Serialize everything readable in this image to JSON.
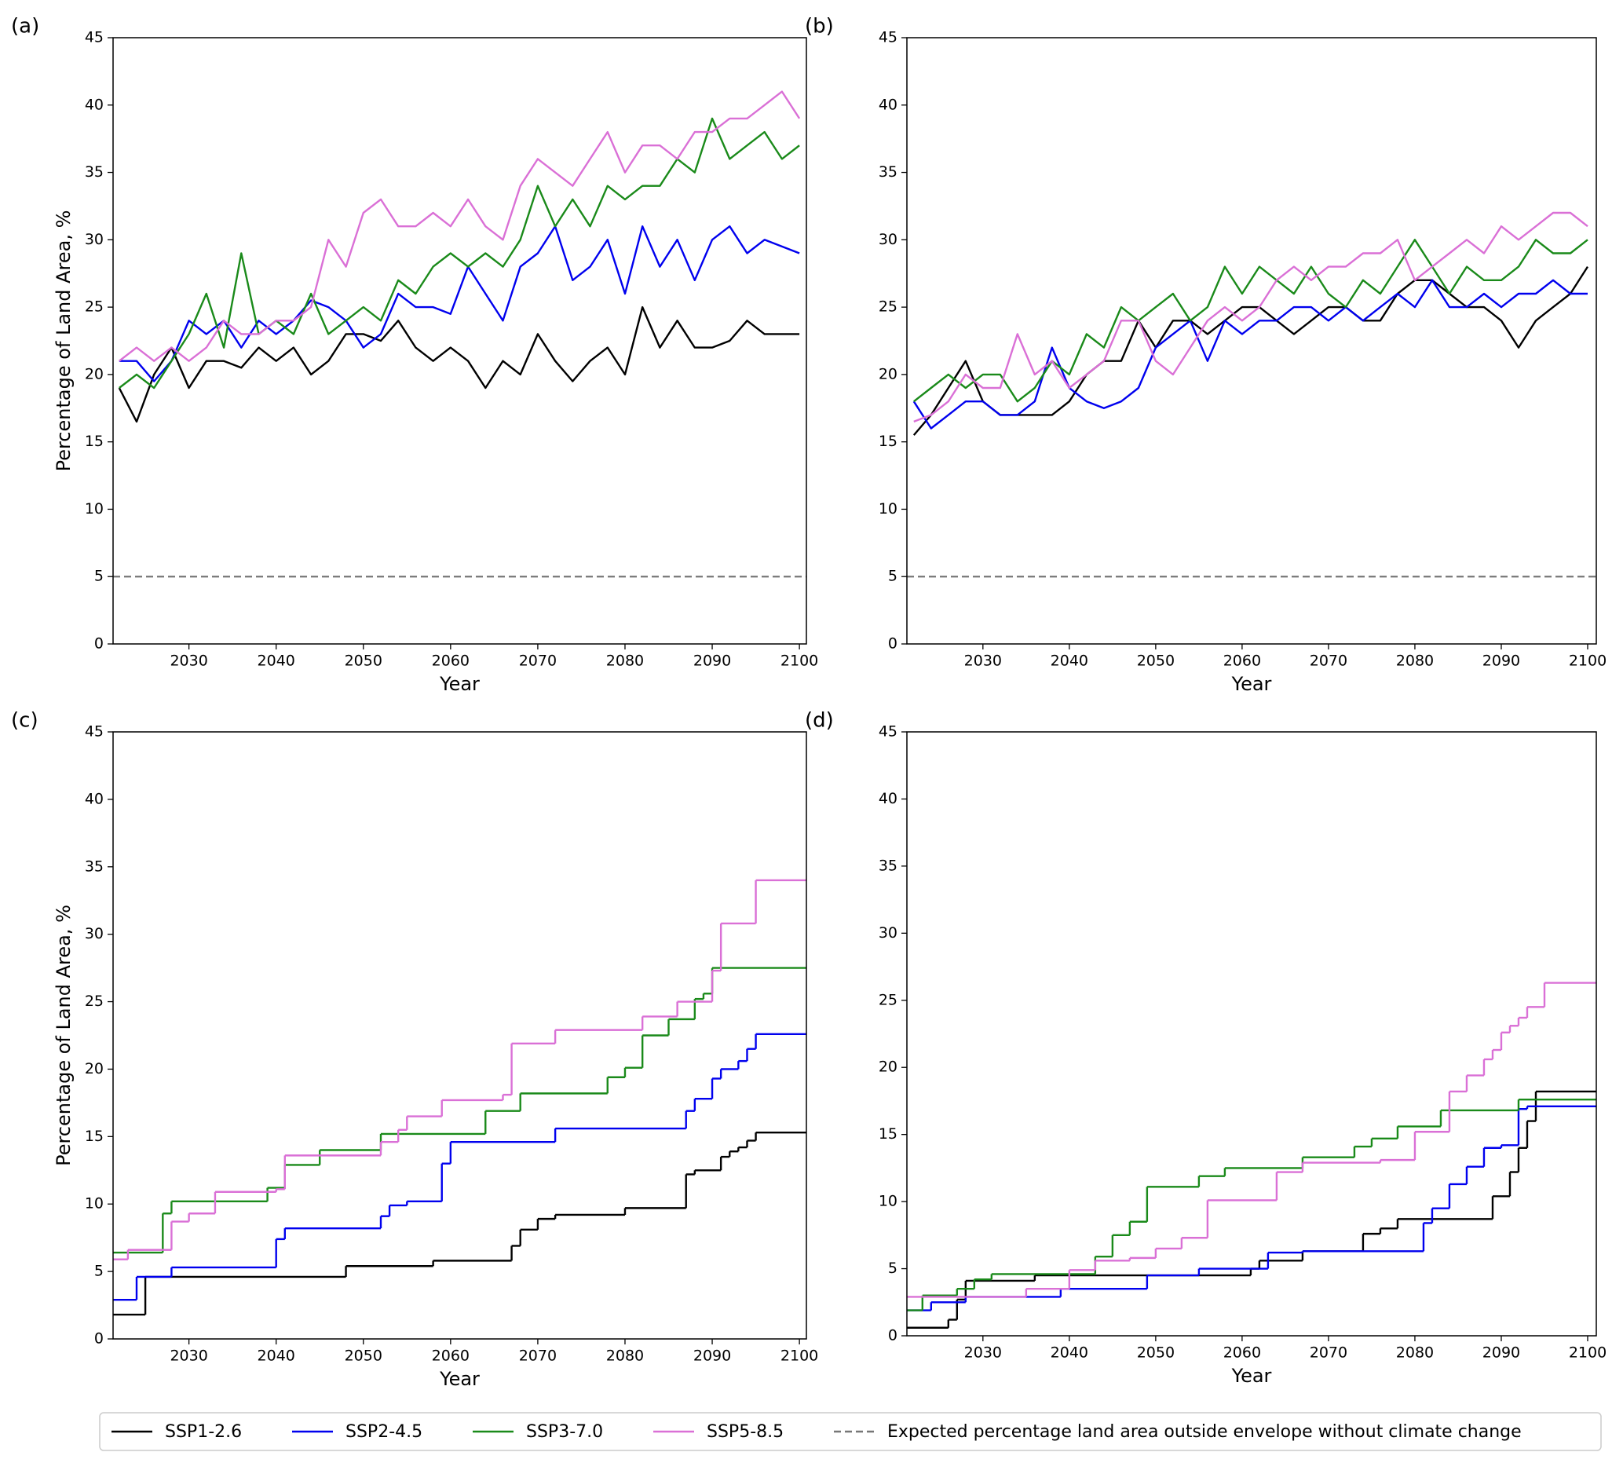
{
  "chart_data": [
    {
      "type": "line",
      "title": "(a)",
      "x_label": "Year",
      "y_label": "Percentage of Land Area, %",
      "xlim": [
        2021.3,
        2100.8
      ],
      "ylim": [
        0,
        45
      ],
      "xticks": [
        2030,
        2040,
        2050,
        2060,
        2070,
        2080,
        2090,
        2100
      ],
      "yticks": [
        0,
        5,
        10,
        15,
        20,
        25,
        30,
        35,
        40,
        45
      ],
      "x": [
        2022,
        2024,
        2026,
        2028,
        2030,
        2032,
        2034,
        2036,
        2038,
        2040,
        2042,
        2044,
        2046,
        2048,
        2050,
        2052,
        2054,
        2056,
        2058,
        2060,
        2062,
        2064,
        2066,
        2068,
        2070,
        2072,
        2074,
        2076,
        2078,
        2080,
        2082,
        2084,
        2086,
        2088,
        2090,
        2092,
        2094,
        2096,
        2098,
        2100
      ],
      "series": [
        {
          "name": "SSP1-2.6",
          "color": "#000000",
          "values": [
            19,
            16.5,
            20,
            22,
            19,
            21,
            21,
            20.5,
            22,
            21,
            22,
            20,
            21,
            23,
            23,
            22.5,
            24,
            22,
            21,
            22,
            21,
            19,
            21,
            20,
            23,
            21,
            19.5,
            21,
            22,
            20,
            25,
            22,
            24,
            22,
            22,
            22.5,
            24,
            23,
            23,
            23
          ]
        },
        {
          "name": "SSP2-4.5",
          "color": "#0000ee",
          "values": [
            21,
            21,
            19.5,
            21,
            24,
            23,
            24,
            22,
            24,
            23,
            24,
            25.5,
            25,
            24,
            22,
            23,
            26,
            25,
            25,
            24.5,
            28,
            26,
            24,
            28,
            29,
            31,
            27,
            28,
            30,
            26,
            31,
            28,
            30,
            27,
            30,
            31,
            29,
            30,
            29.5,
            29
          ]
        },
        {
          "name": "SSP3-7.0",
          "color": "#1a8a1a",
          "values": [
            19,
            20,
            19,
            21,
            23,
            26,
            22,
            29,
            23,
            24,
            23,
            26,
            23,
            24,
            25,
            24,
            27,
            26,
            28,
            29,
            28,
            29,
            28,
            30,
            34,
            31,
            33,
            31,
            34,
            33,
            34,
            34,
            36,
            35,
            39,
            36,
            37,
            38,
            36,
            37
          ]
        },
        {
          "name": "SSP5-8.5",
          "color": "#da70d6",
          "values": [
            21,
            22,
            21,
            22,
            21,
            22,
            24,
            23,
            23,
            24,
            24,
            25,
            30,
            28,
            32,
            33,
            31,
            31,
            32,
            31,
            33,
            31,
            30,
            34,
            36,
            35,
            34,
            36,
            38,
            35,
            37,
            37,
            36,
            38,
            38,
            39,
            39,
            40,
            41,
            39
          ]
        }
      ],
      "reference_line": {
        "value": 5,
        "label": "Expected percentage land area outside envelope without climate change",
        "color": "#777777"
      }
    },
    {
      "type": "line",
      "title": "(b)",
      "x_label": "Year",
      "xlim": [
        2021.2,
        2101
      ],
      "ylim": [
        0,
        45
      ],
      "xticks": [
        2030,
        2040,
        2050,
        2060,
        2070,
        2080,
        2090,
        2100
      ],
      "yticks": [
        0,
        5,
        10,
        15,
        20,
        25,
        30,
        35,
        40,
        45
      ],
      "x": [
        2022,
        2024,
        2026,
        2028,
        2030,
        2032,
        2034,
        2036,
        2038,
        2040,
        2042,
        2044,
        2046,
        2048,
        2050,
        2052,
        2054,
        2056,
        2058,
        2060,
        2062,
        2064,
        2066,
        2068,
        2070,
        2072,
        2074,
        2076,
        2078,
        2080,
        2082,
        2084,
        2086,
        2088,
        2090,
        2092,
        2094,
        2096,
        2098,
        2100
      ],
      "series": [
        {
          "name": "SSP1-2.6",
          "color": "#000000",
          "values": [
            15.5,
            17,
            19,
            21,
            18,
            17,
            17,
            17,
            17,
            18,
            20,
            21,
            21,
            24,
            22,
            24,
            24,
            23,
            24,
            25,
            25,
            24,
            23,
            24,
            25,
            25,
            24,
            24,
            26,
            27,
            27,
            26,
            25,
            25,
            24,
            22,
            24,
            25,
            26,
            28
          ]
        },
        {
          "name": "SSP2-4.5",
          "color": "#0000ee",
          "values": [
            18,
            16,
            17,
            18,
            18,
            17,
            17,
            18,
            22,
            19,
            18,
            17.5,
            18,
            19,
            22,
            23,
            24,
            21,
            24,
            23,
            24,
            24,
            25,
            25,
            24,
            25,
            24,
            25,
            26,
            25,
            27,
            25,
            25,
            26,
            25,
            26,
            26,
            27,
            26,
            26
          ]
        },
        {
          "name": "SSP3-7.0",
          "color": "#1a8a1a",
          "values": [
            18,
            19,
            20,
            19,
            20,
            20,
            18,
            19,
            21,
            20,
            23,
            22,
            25,
            24,
            25,
            26,
            24,
            25,
            28,
            26,
            28,
            27,
            26,
            28,
            26,
            25,
            27,
            26,
            28,
            30,
            28,
            26,
            28,
            27,
            27,
            28,
            30,
            29,
            29,
            30
          ]
        },
        {
          "name": "SSP5-8.5",
          "color": "#da70d6",
          "values": [
            16.5,
            17,
            18,
            20,
            19,
            19,
            23,
            20,
            21,
            19,
            20,
            21,
            24,
            24,
            21,
            20,
            22,
            24,
            25,
            24,
            25,
            27,
            28,
            27,
            28,
            28,
            29,
            29,
            30,
            27,
            28,
            29,
            30,
            29,
            31,
            30,
            31,
            32,
            32,
            31
          ]
        }
      ],
      "reference_line": {
        "value": 5,
        "color": "#777777"
      }
    },
    {
      "type": "step",
      "title": "(c)",
      "x_label": "Year",
      "y_label": "Percentage of Land Area, %",
      "xlim": [
        2021.3,
        2100.8
      ],
      "ylim": [
        0,
        45
      ],
      "xticks": [
        2030,
        2040,
        2050,
        2060,
        2070,
        2080,
        2090,
        2100
      ],
      "yticks": [
        0,
        5,
        10,
        15,
        20,
        25,
        30,
        35,
        40,
        45
      ],
      "series": [
        {
          "name": "SSP1-2.6",
          "color": "#000000",
          "x": [
            2021.3,
            2025,
            2048,
            2058,
            2067,
            2068,
            2070,
            2072,
            2080,
            2087,
            2088,
            2091,
            2092,
            2093,
            2094,
            2095
          ],
          "values": [
            1.8,
            4.6,
            5.4,
            5.8,
            6.9,
            8.1,
            8.9,
            9.2,
            9.7,
            12.2,
            12.5,
            13.5,
            13.9,
            14.2,
            14.7,
            15.3
          ]
        },
        {
          "name": "SSP2-4.5",
          "color": "#0000ee",
          "x": [
            2021.3,
            2024,
            2028,
            2040,
            2041,
            2052,
            2053,
            2055,
            2059,
            2060,
            2072,
            2087,
            2088,
            2090,
            2091,
            2093,
            2094,
            2095
          ],
          "values": [
            2.9,
            4.6,
            5.3,
            7.4,
            8.2,
            9.1,
            9.9,
            10.2,
            13.0,
            14.6,
            15.6,
            16.9,
            17.8,
            19.3,
            20.0,
            20.6,
            21.5,
            22.6
          ]
        },
        {
          "name": "SSP3-7.0",
          "color": "#1a8a1a",
          "x": [
            2021.3,
            2027,
            2028,
            2039,
            2041,
            2045,
            2052,
            2064,
            2068,
            2078,
            2080,
            2082,
            2085,
            2088,
            2089,
            2090
          ],
          "values": [
            6.4,
            9.3,
            10.2,
            11.2,
            12.9,
            14.0,
            15.2,
            16.9,
            18.2,
            19.4,
            20.1,
            22.5,
            23.7,
            25.2,
            25.6,
            27.5
          ]
        },
        {
          "name": "SSP5-8.5",
          "color": "#da70d6",
          "x": [
            2021.3,
            2023,
            2028,
            2030,
            2033,
            2040,
            2041,
            2052,
            2054,
            2055,
            2059,
            2066,
            2067,
            2072,
            2082,
            2086,
            2090,
            2091,
            2095
          ],
          "values": [
            5.9,
            6.6,
            8.7,
            9.3,
            10.9,
            11.1,
            13.6,
            14.6,
            15.5,
            16.5,
            17.7,
            18.1,
            21.9,
            22.9,
            23.9,
            25.0,
            27.3,
            30.8,
            34.0
          ]
        }
      ]
    },
    {
      "type": "step",
      "title": "(d)",
      "x_label": "Year",
      "xlim": [
        2021.2,
        2101
      ],
      "ylim": [
        0,
        45
      ],
      "xticks": [
        2030,
        2040,
        2050,
        2060,
        2070,
        2080,
        2090,
        2100
      ],
      "yticks": [
        0,
        5,
        10,
        15,
        20,
        25,
        30,
        35,
        40,
        45
      ],
      "series": [
        {
          "name": "SSP1-2.6",
          "color": "#000000",
          "x": [
            2021.2,
            2026,
            2027,
            2028,
            2036,
            2061,
            2062,
            2067,
            2074,
            2076,
            2078,
            2089,
            2091,
            2092,
            2093,
            2094
          ],
          "values": [
            0.6,
            1.2,
            2.7,
            4.1,
            4.5,
            5.0,
            5.6,
            6.3,
            7.6,
            8.0,
            8.7,
            10.4,
            12.2,
            14.0,
            16.0,
            18.2
          ]
        },
        {
          "name": "SSP2-4.5",
          "color": "#0000ee",
          "x": [
            2021.2,
            2024,
            2028,
            2039,
            2049,
            2055,
            2063,
            2067,
            2081,
            2082,
            2084,
            2086,
            2088,
            2090,
            2092,
            2093
          ],
          "values": [
            1.9,
            2.5,
            2.9,
            3.5,
            4.5,
            5.0,
            6.2,
            6.3,
            8.4,
            9.5,
            11.3,
            12.6,
            14.0,
            14.2,
            16.9,
            17.1
          ]
        },
        {
          "name": "SSP3-7.0",
          "color": "#1a8a1a",
          "x": [
            2021.2,
            2023,
            2027,
            2029,
            2031,
            2043,
            2045,
            2047,
            2049,
            2055,
            2058,
            2067,
            2073,
            2075,
            2078,
            2083,
            2092
          ],
          "values": [
            1.9,
            3.0,
            3.5,
            4.2,
            4.6,
            5.9,
            7.5,
            8.5,
            11.1,
            11.9,
            12.5,
            13.3,
            14.1,
            14.7,
            15.6,
            16.8,
            17.6
          ]
        },
        {
          "name": "SSP5-8.5",
          "color": "#da70d6",
          "x": [
            2021.2,
            2035,
            2040,
            2043,
            2047,
            2050,
            2053,
            2056,
            2064,
            2067,
            2076,
            2080,
            2084,
            2086,
            2088,
            2089,
            2090,
            2091,
            2092,
            2093,
            2095
          ],
          "values": [
            2.9,
            3.5,
            4.9,
            5.6,
            5.8,
            6.5,
            7.3,
            10.1,
            12.2,
            12.9,
            13.1,
            15.2,
            18.2,
            19.4,
            20.6,
            21.3,
            22.6,
            23.1,
            23.7,
            24.5,
            26.3
          ]
        }
      ]
    }
  ]
}
